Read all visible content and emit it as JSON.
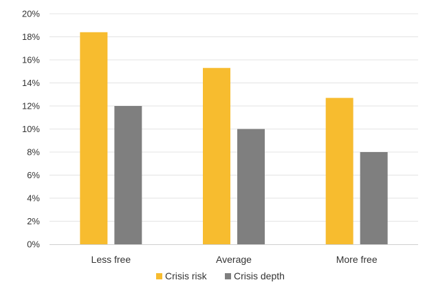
{
  "chart_data": {
    "type": "bar",
    "categories": [
      "Less free",
      "Average",
      "More free"
    ],
    "series": [
      {
        "name": "Crisis risk",
        "values": [
          18.4,
          15.3,
          12.7
        ],
        "color": "#f7bc2f"
      },
      {
        "name": "Crisis depth",
        "values": [
          12.0,
          10.0,
          8.0
        ],
        "color": "#7f7f7f"
      }
    ],
    "ylim": [
      0,
      20
    ],
    "yticks": [
      0,
      2,
      4,
      6,
      8,
      10,
      12,
      14,
      16,
      18,
      20
    ],
    "ytick_labels": [
      "0%",
      "2%",
      "4%",
      "6%",
      "8%",
      "10%",
      "12%",
      "14%",
      "16%",
      "18%",
      "20%"
    ],
    "grid": true,
    "legend_position": "bottom",
    "title": "",
    "xlabel": "",
    "ylabel": ""
  }
}
